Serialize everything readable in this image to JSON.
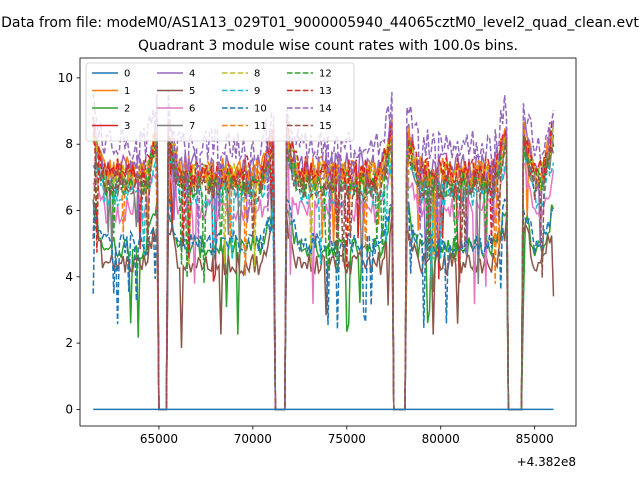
{
  "figure": {
    "suptitle": "Data from file: modeM0/AS1A13_029T01_9000005940_44065cztM0_level2_quad_clean.evt",
    "title": "Quadrant 3 module wise count rates with 100.0s bins.",
    "offset_label": "+4.382e8"
  },
  "chart_data": {
    "type": "line",
    "title": "Quadrant 3 module wise count rates with 100.0s bins.",
    "xlabel": "",
    "ylabel": "",
    "x_offset": 438200000,
    "xlim": [
      60800,
      87200
    ],
    "ylim": [
      -0.5,
      10.6
    ],
    "xticks": [
      65000,
      70000,
      75000,
      80000,
      85000
    ],
    "xtick_labels": [
      "65000",
      "70000",
      "75000",
      "80000",
      "85000"
    ],
    "yticks": [
      0,
      2,
      4,
      6,
      8,
      10
    ],
    "ytick_labels": [
      "0",
      "2",
      "4",
      "6",
      "8",
      "10"
    ],
    "grid": false,
    "legend_position": "top-left",
    "legend_ncol": 4,
    "segments": [
      [
        61500,
        64900
      ],
      [
        65500,
        71150
      ],
      [
        71800,
        77400
      ],
      [
        78200,
        83500
      ],
      [
        84400,
        86000
      ]
    ],
    "gaps": [
      [
        65000,
        65400
      ],
      [
        71200,
        71700
      ],
      [
        77400,
        78100
      ],
      [
        83600,
        84300
      ]
    ],
    "series": [
      {
        "name": "0",
        "color": "#1f77b4",
        "dash": "solid",
        "level": 0.0,
        "noise": 0.0
      },
      {
        "name": "1",
        "color": "#ff7f0e",
        "dash": "solid",
        "level": 7.2,
        "noise": 0.45
      },
      {
        "name": "2",
        "color": "#2ca02c",
        "dash": "solid",
        "level": 4.9,
        "noise": 0.35
      },
      {
        "name": "3",
        "color": "#d62728",
        "dash": "solid",
        "level": 7.0,
        "noise": 0.45
      },
      {
        "name": "4",
        "color": "#9467bd",
        "dash": "solid",
        "level": 7.3,
        "noise": 0.45
      },
      {
        "name": "5",
        "color": "#8c564b",
        "dash": "solid",
        "level": 4.4,
        "noise": 0.35
      },
      {
        "name": "6",
        "color": "#e377c2",
        "dash": "solid",
        "level": 6.0,
        "noise": 0.4
      },
      {
        "name": "7",
        "color": "#7f7f7f",
        "dash": "solid",
        "level": 6.8,
        "noise": 0.4
      },
      {
        "name": "8",
        "color": "#bcbd22",
        "dash": "dashed",
        "level": 7.0,
        "noise": 0.45
      },
      {
        "name": "9",
        "color": "#17becf",
        "dash": "dashed",
        "level": 6.5,
        "noise": 0.4
      },
      {
        "name": "10",
        "color": "#1f77b4",
        "dash": "dashed",
        "level": 5.0,
        "noise": 0.35
      },
      {
        "name": "11",
        "color": "#ff7f0e",
        "dash": "dashed",
        "level": 7.1,
        "noise": 0.45
      },
      {
        "name": "12",
        "color": "#2ca02c",
        "dash": "dashed",
        "level": 6.8,
        "noise": 0.4
      },
      {
        "name": "13",
        "color": "#d62728",
        "dash": "dashed",
        "level": 7.2,
        "noise": 0.45
      },
      {
        "name": "14",
        "color": "#9467bd",
        "dash": "dashed",
        "level": 8.0,
        "noise": 0.5
      },
      {
        "name": "15",
        "color": "#8c564b",
        "dash": "dashed",
        "level": 6.7,
        "noise": 0.4
      }
    ]
  }
}
